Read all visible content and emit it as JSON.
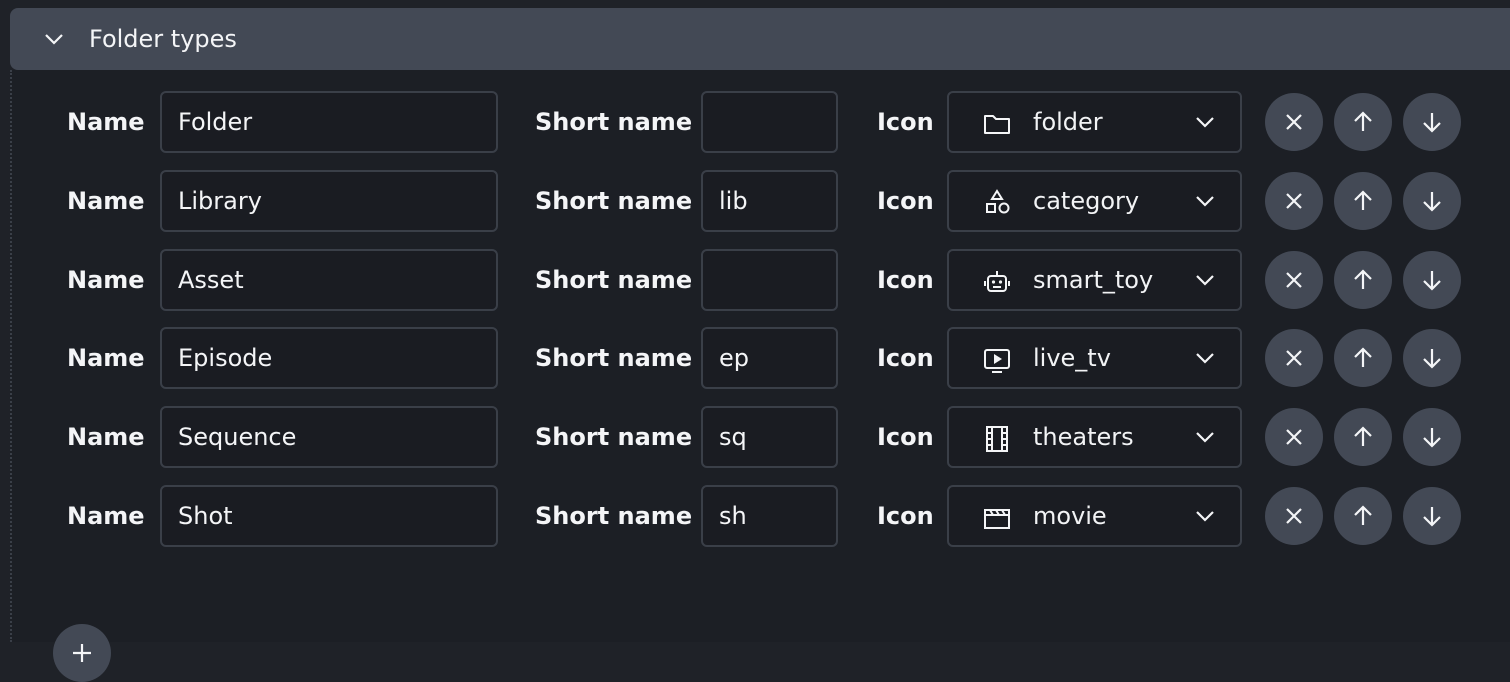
{
  "section": {
    "title": "Folder types",
    "expanded": true
  },
  "labels": {
    "name": "Name",
    "short_name": "Short name",
    "icon": "Icon"
  },
  "rows": [
    {
      "name": "Folder",
      "short_name": "",
      "icon": "folder"
    },
    {
      "name": "Library",
      "short_name": "lib",
      "icon": "category"
    },
    {
      "name": "Asset",
      "short_name": "",
      "icon": "smart_toy"
    },
    {
      "name": "Episode",
      "short_name": "ep",
      "icon": "live_tv"
    },
    {
      "name": "Sequence",
      "short_name": "sq",
      "icon": "theaters"
    },
    {
      "name": "Shot",
      "short_name": "sh",
      "icon": "movie"
    }
  ],
  "row_actions": [
    "close-icon",
    "arrow-up-icon",
    "arrow-down-icon"
  ],
  "add_button_icon": "plus-icon",
  "colors": {
    "header_bg": "#434955",
    "button_bg": "#434955",
    "input_bg": "#1a1c22",
    "border": "#3a3f48"
  }
}
